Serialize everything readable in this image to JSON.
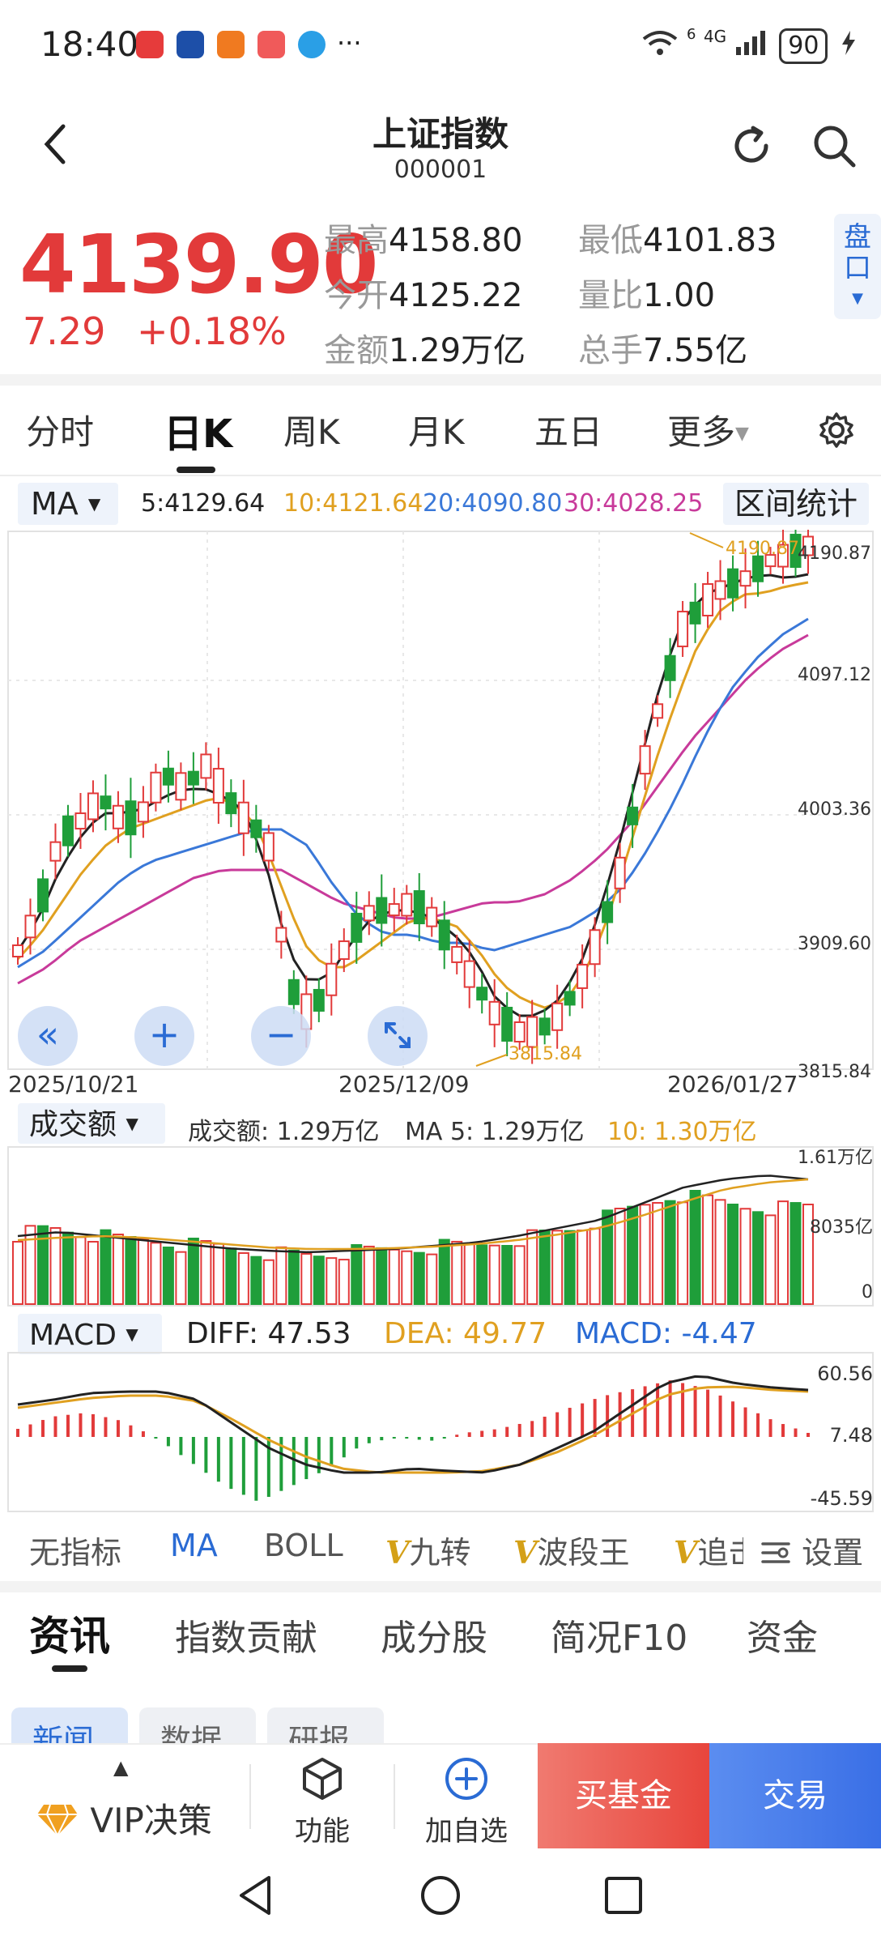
{
  "status_bar": {
    "time": "18:40",
    "battery": "90",
    "signal_text": "4G",
    "wifi_label": "6",
    "more": "···"
  },
  "header": {
    "title": "上证指数",
    "code": "000001"
  },
  "quote": {
    "price": "4139.90",
    "change_abs": "7.29",
    "change_pct": "+0.18%",
    "stats": [
      {
        "label": "最高",
        "value": "4158.80"
      },
      {
        "label": "最低",
        "value": "4101.83"
      },
      {
        "label": "今开",
        "value": "4125.22"
      },
      {
        "label": "量比",
        "value": "1.00"
      },
      {
        "label": "金额",
        "value": "1.29万亿"
      },
      {
        "label": "总手",
        "value": "7.55亿"
      }
    ],
    "pankou": "盘口",
    "pankou_arrow": "▼"
  },
  "k_tabs": [
    {
      "label": "分时"
    },
    {
      "label": "日K"
    },
    {
      "label": "周K"
    },
    {
      "label": "月K"
    },
    {
      "label": "五日"
    },
    {
      "label": "更多"
    }
  ],
  "ma": {
    "select": "MA",
    "ma5": "5:4129.64",
    "ma10": "10:4121.64",
    "ma20": "20:4090.80",
    "ma30": "30:4028.25",
    "range_stat": "区间统计"
  },
  "kline": {
    "y_labels": [
      "4190.87",
      "4097.12",
      "4003.36",
      "3909.60",
      "3815.84"
    ],
    "x_labels": [
      "2025/10/21",
      "2025/12/09",
      "2026/01/27"
    ],
    "high_marker": "4190.87",
    "low_marker": "3815.84"
  },
  "volume": {
    "select": "成交额",
    "info": "成交额: 1.29万亿",
    "ma5": "MA 5: 1.29万亿",
    "ma10": "10: 1.30万亿",
    "y_labels": [
      "1.61万亿",
      "8035亿",
      "0"
    ]
  },
  "macd": {
    "select": "MACD",
    "diff": "DIFF: 47.53",
    "dea": "DEA: 49.77",
    "macd": "MACD: -4.47",
    "y_labels": [
      "60.56",
      "7.48",
      "-45.59"
    ]
  },
  "indicators": {
    "items": [
      "无指标",
      "MA",
      "BOLL",
      "九转",
      "波段王",
      "追击"
    ],
    "v_mark": "V",
    "settings": "设置"
  },
  "news_tabs": [
    "资讯",
    "指数贡献",
    "成分股",
    "简况F10",
    "资金"
  ],
  "news_subtabs": [
    "新闻",
    "数据",
    "研报"
  ],
  "bottom_bar": {
    "vip": "VIP决策",
    "func": "功能",
    "add": "加自选",
    "buy_fund": "买基金",
    "trade": "交易"
  },
  "colors": {
    "up": "#e23a3a",
    "down": "#1f9e3a",
    "ma5": "#222222",
    "ma10": "#e0a020",
    "ma20": "#3a78d8",
    "ma30": "#c83a9a",
    "accent": "#2a6bd4"
  }
}
